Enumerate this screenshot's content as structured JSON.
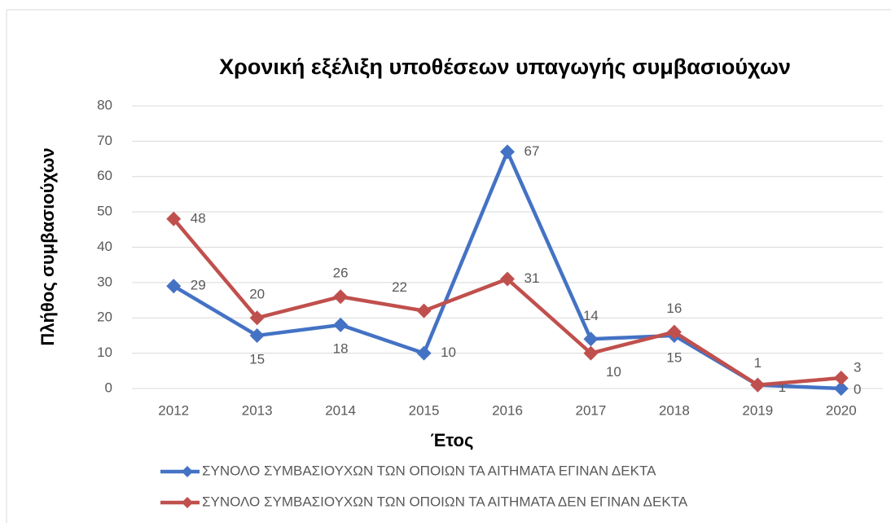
{
  "chart_data": {
    "type": "line",
    "title": "Χρονική εξέλιξη υποθέσεων υπαγωγής συμβασιούχων",
    "x_label": "Έτος",
    "y_label": "Πλήθος συμβασιούχων",
    "categories": [
      "2012",
      "2013",
      "2014",
      "2015",
      "2016",
      "2017",
      "2018",
      "2019",
      "2020"
    ],
    "series": [
      {
        "name": "ΣΥΝΟΛΟ ΣΥΜΒΑΣΙΟΥΧΩΝ ΤΩΝ ΟΠΟΙΩΝ ΤΑ ΑΙΤΗΜΑΤΑ ΕΓΙΝΑΝ ΔΕΚΤΑ",
        "color": "#4472c4",
        "values": [
          29,
          15,
          18,
          10,
          67,
          14,
          15,
          1,
          0
        ]
      },
      {
        "name": "ΣΥΝΟΛΟ ΣΥΜΒΑΣΙΟΥΧΩΝ ΤΩΝ ΟΠΟΙΩΝ ΤΑ ΑΙΤΗΜΑΤΑ ΔΕΝ ΕΓΙΝΑΝ ΔΕΚΤΑ",
        "color": "#c0504d",
        "values": [
          48,
          20,
          26,
          22,
          31,
          10,
          16,
          1,
          3
        ]
      }
    ],
    "ylim": [
      0,
      80
    ],
    "yticks": [
      0,
      10,
      20,
      30,
      40,
      50,
      60,
      70,
      80
    ],
    "grid": true,
    "legend": "bottom"
  }
}
